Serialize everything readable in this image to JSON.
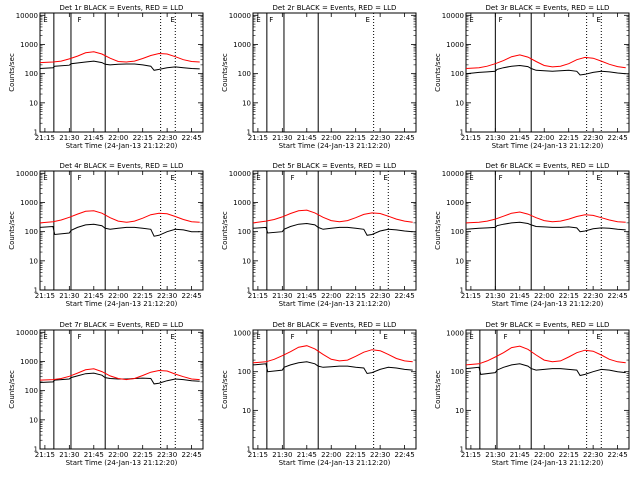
{
  "page": {
    "title": ""
  },
  "xticks": [
    "21:15",
    "21:30",
    "21:45",
    "22:00",
    "22:15",
    "22:30",
    "22:45"
  ],
  "xtick_values": [
    915,
    930,
    945,
    960,
    975,
    990,
    1005
  ],
  "xlim": [
    912,
    1012
  ],
  "xlabel": "Start Time (24-Jan-13 21:12:20)",
  "ylabel": "Counts/sec",
  "yticks": [
    1,
    10,
    100,
    1000,
    10000
  ],
  "ytick_labels": [
    "1",
    "10",
    "100",
    "1000",
    "10000"
  ],
  "ylim": [
    1,
    12000
  ],
  "series_colors": {
    "events": "#000000",
    "lld": "#ff0000"
  },
  "chart_data": [
    {
      "type": "line",
      "title": "Det 1r BLACK = Events, RED = LLD",
      "xlabel": "Start Time (24-Jan-13 21:12:20)",
      "ylabel": "Counts/sec",
      "ylim": [
        1,
        12000
      ],
      "log_y": true,
      "vlines_solid": [
        920.5,
        931,
        952
      ],
      "vlines_dotted": [
        986,
        995
      ],
      "markers": [
        {
          "x": 914,
          "label": "E"
        },
        {
          "x": 935,
          "label": "F"
        },
        {
          "x": 992,
          "label": "E"
        }
      ],
      "series": [
        {
          "name": "BLACK = Events",
          "x": [
            912,
            920,
            921,
            930,
            931,
            940,
            945,
            950,
            952,
            955,
            960,
            965,
            970,
            975,
            980,
            982,
            985,
            990,
            995,
            1000,
            1005,
            1010
          ],
          "values": [
            150,
            160,
            180,
            195,
            220,
            250,
            270,
            240,
            210,
            200,
            210,
            215,
            215,
            200,
            180,
            130,
            140,
            160,
            170,
            160,
            150,
            145
          ]
        },
        {
          "name": "RED = LLD",
          "x": [
            912,
            920,
            925,
            930,
            935,
            940,
            945,
            950,
            955,
            960,
            965,
            970,
            975,
            980,
            985,
            990,
            995,
            1000,
            1005,
            1010
          ],
          "values": [
            240,
            250,
            270,
            320,
            400,
            520,
            560,
            470,
            340,
            260,
            250,
            270,
            330,
            420,
            490,
            470,
            380,
            300,
            260,
            250
          ]
        }
      ]
    },
    {
      "type": "line",
      "title": "Det 2r BLACK = Events, RED = LLD",
      "xlabel": "Start Time (24-Jan-13 21:12:20)",
      "ylabel": "Counts/sec",
      "ylim": [
        1,
        12000
      ],
      "log_y": true,
      "vlines_solid": [
        920.5,
        931,
        952
      ],
      "vlines_dotted": [
        986
      ],
      "markers": [
        {
          "x": 914,
          "label": "E"
        },
        {
          "x": 922,
          "label": "F"
        },
        {
          "x": 981,
          "label": "E"
        }
      ],
      "series": []
    },
    {
      "type": "line",
      "title": "Det 3r BLACK = Events, RED = LLD",
      "xlabel": "Start Time (24-Jan-13 21:12:20)",
      "ylabel": "Counts/sec",
      "ylim": [
        1,
        12000
      ],
      "log_y": true,
      "vlines_solid": [
        930,
        952
      ],
      "vlines_dotted": [
        986,
        995
      ],
      "markers": [
        {
          "x": 914,
          "label": "E"
        },
        {
          "x": 932,
          "label": "F"
        },
        {
          "x": 992,
          "label": "E"
        }
      ],
      "series": [
        {
          "name": "BLACK = Events",
          "x": [
            912,
            920,
            925,
            930,
            931,
            935,
            940,
            945,
            950,
            952,
            955,
            960,
            965,
            970,
            975,
            980,
            982,
            985,
            990,
            995,
            1000,
            1005,
            1010
          ],
          "values": [
            100,
            110,
            115,
            120,
            140,
            160,
            180,
            190,
            175,
            150,
            130,
            125,
            120,
            125,
            130,
            120,
            90,
            95,
            110,
            120,
            115,
            105,
            100
          ]
        },
        {
          "name": "RED = LLD",
          "x": [
            912,
            920,
            925,
            930,
            935,
            940,
            945,
            950,
            955,
            960,
            965,
            970,
            975,
            980,
            985,
            990,
            995,
            1000,
            1005,
            1010
          ],
          "values": [
            150,
            160,
            180,
            220,
            280,
            380,
            440,
            370,
            260,
            190,
            170,
            180,
            220,
            300,
            360,
            340,
            270,
            210,
            175,
            160
          ]
        }
      ]
    },
    {
      "type": "line",
      "title": "Det 4r BLACK = Events, RED = LLD",
      "xlabel": "Start Time (24-Jan-13 21:12:20)",
      "ylabel": "Counts/sec",
      "ylim": [
        1,
        12000
      ],
      "log_y": true,
      "vlines_solid": [
        920.5,
        931,
        952
      ],
      "vlines_dotted": [
        986,
        995
      ],
      "markers": [
        {
          "x": 914,
          "label": "E"
        },
        {
          "x": 935,
          "label": "F"
        },
        {
          "x": 992,
          "label": "E"
        }
      ],
      "series": [
        {
          "name": "BLACK = Events",
          "x": [
            912,
            920,
            921,
            930,
            931,
            935,
            940,
            945,
            950,
            952,
            955,
            960,
            965,
            970,
            975,
            980,
            982,
            985,
            990,
            995,
            1000,
            1005,
            1010
          ],
          "values": [
            140,
            150,
            80,
            90,
            110,
            140,
            170,
            180,
            160,
            130,
            120,
            130,
            140,
            140,
            130,
            120,
            70,
            75,
            100,
            120,
            115,
            100,
            100
          ]
        },
        {
          "name": "RED = LLD",
          "x": [
            912,
            920,
            925,
            930,
            935,
            940,
            945,
            950,
            955,
            960,
            965,
            970,
            975,
            980,
            985,
            990,
            995,
            1000,
            1005,
            1010
          ],
          "values": [
            200,
            220,
            250,
            310,
            400,
            500,
            520,
            430,
            300,
            230,
            210,
            230,
            290,
            380,
            430,
            410,
            330,
            260,
            220,
            210
          ]
        }
      ]
    },
    {
      "type": "line",
      "title": "Det 5r BLACK = Events, RED = LLD",
      "xlabel": "Start Time (24-Jan-13 21:12:20)",
      "ylabel": "Counts/sec",
      "ylim": [
        1,
        12000
      ],
      "log_y": true,
      "vlines_solid": [
        920.5,
        931,
        952
      ],
      "vlines_dotted": [
        986,
        995
      ],
      "markers": [
        {
          "x": 914,
          "label": "E"
        },
        {
          "x": 935,
          "label": "F"
        },
        {
          "x": 992,
          "label": "E"
        }
      ],
      "series": [
        {
          "name": "BLACK = Events",
          "x": [
            912,
            920,
            921,
            930,
            931,
            935,
            940,
            945,
            950,
            952,
            955,
            960,
            965,
            970,
            975,
            980,
            982,
            985,
            990,
            995,
            1000,
            1005,
            1010
          ],
          "values": [
            130,
            140,
            90,
            100,
            120,
            150,
            180,
            190,
            170,
            140,
            120,
            130,
            140,
            140,
            130,
            120,
            75,
            80,
            105,
            120,
            115,
            105,
            100
          ]
        },
        {
          "name": "RED = LLD",
          "x": [
            912,
            920,
            925,
            930,
            935,
            940,
            945,
            950,
            955,
            960,
            965,
            970,
            975,
            980,
            985,
            990,
            995,
            1000,
            1005,
            1010
          ],
          "values": [
            200,
            230,
            260,
            320,
            420,
            520,
            550,
            440,
            310,
            240,
            220,
            240,
            300,
            390,
            440,
            420,
            340,
            270,
            230,
            210
          ]
        }
      ]
    },
    {
      "type": "line",
      "title": "Det 6r BLACK = Events, RED = LLD",
      "xlabel": "Start Time (24-Jan-13 21:12:20)",
      "ylabel": "Counts/sec",
      "ylim": [
        1,
        12000
      ],
      "log_y": true,
      "vlines_solid": [
        930,
        952
      ],
      "vlines_dotted": [
        986,
        995
      ],
      "markers": [
        {
          "x": 914,
          "label": "E"
        },
        {
          "x": 932,
          "label": "F"
        },
        {
          "x": 992,
          "label": "E"
        }
      ],
      "series": [
        {
          "name": "BLACK = Events",
          "x": [
            912,
            920,
            925,
            930,
            931,
            935,
            940,
            945,
            950,
            952,
            955,
            960,
            965,
            970,
            975,
            980,
            982,
            985,
            990,
            995,
            1000,
            1005,
            1010
          ],
          "values": [
            120,
            130,
            135,
            140,
            160,
            180,
            200,
            210,
            190,
            170,
            150,
            145,
            140,
            140,
            145,
            135,
            100,
            105,
            125,
            135,
            130,
            120,
            115
          ]
        },
        {
          "name": "RED = LLD",
          "x": [
            912,
            920,
            925,
            930,
            935,
            940,
            945,
            950,
            955,
            960,
            965,
            970,
            975,
            980,
            985,
            990,
            995,
            1000,
            1005,
            1010
          ],
          "values": [
            200,
            210,
            230,
            270,
            340,
            430,
            470,
            400,
            300,
            240,
            220,
            230,
            270,
            330,
            380,
            360,
            300,
            250,
            220,
            210
          ]
        }
      ]
    },
    {
      "type": "line",
      "title": "Det 7r BLACK = Events, RED = LLD",
      "xlabel": "Start Time (24-Jan-13 21:12:20)",
      "ylabel": "Counts/sec",
      "ylim": [
        1,
        12000
      ],
      "log_y": true,
      "vlines_solid": [
        920.5,
        931,
        952
      ],
      "vlines_dotted": [
        986,
        995
      ],
      "markers": [
        {
          "x": 914,
          "label": "E"
        },
        {
          "x": 935,
          "label": "F"
        },
        {
          "x": 992,
          "label": "E"
        }
      ],
      "series": [
        {
          "name": "BLACK = Events",
          "x": [
            912,
            920,
            921,
            930,
            931,
            935,
            940,
            945,
            950,
            952,
            955,
            960,
            965,
            970,
            975,
            980,
            982,
            985,
            990,
            995,
            1000,
            1005,
            1010
          ],
          "values": [
            190,
            200,
            230,
            250,
            280,
            320,
            380,
            400,
            340,
            280,
            260,
            250,
            250,
            260,
            270,
            260,
            170,
            180,
            220,
            250,
            240,
            220,
            210
          ]
        },
        {
          "name": "RED = LLD",
          "x": [
            912,
            920,
            925,
            930,
            935,
            940,
            945,
            950,
            955,
            960,
            965,
            970,
            975,
            980,
            985,
            990,
            995,
            1000,
            1005,
            1010
          ],
          "values": [
            230,
            240,
            260,
            310,
            400,
            520,
            560,
            450,
            320,
            260,
            240,
            260,
            330,
            430,
            490,
            470,
            370,
            300,
            250,
            240
          ]
        }
      ]
    },
    {
      "type": "line",
      "title": "Det 8r BLACK = Events, RED = LLD",
      "xlabel": "Start Time (24-Jan-13 21:12:20)",
      "ylabel": "Counts/sec",
      "ylim": [
        1,
        1200
      ],
      "log_y": true,
      "yticks": [
        1,
        10,
        100,
        1000
      ],
      "ytick_labels": [
        "1",
        "10",
        "100",
        "1000"
      ],
      "vlines_solid": [
        920.5,
        931,
        952
      ],
      "vlines_dotted": [
        986
      ],
      "markers": [
        {
          "x": 914,
          "label": "E"
        },
        {
          "x": 935,
          "label": "F"
        },
        {
          "x": 992,
          "label": "E"
        }
      ],
      "series": [
        {
          "name": "BLACK = Events",
          "x": [
            912,
            920,
            921,
            930,
            931,
            935,
            940,
            945,
            950,
            952,
            955,
            960,
            965,
            970,
            975,
            980,
            982,
            985,
            990,
            995,
            1000,
            1005,
            1010
          ],
          "values": [
            150,
            160,
            100,
            110,
            130,
            150,
            170,
            180,
            160,
            140,
            130,
            135,
            140,
            140,
            130,
            125,
            90,
            95,
            115,
            130,
            125,
            115,
            110
          ]
        },
        {
          "name": "RED = LLD",
          "x": [
            912,
            920,
            925,
            930,
            935,
            940,
            945,
            950,
            955,
            960,
            965,
            970,
            975,
            980,
            985,
            990,
            995,
            1000,
            1005,
            1010
          ],
          "values": [
            170,
            180,
            210,
            260,
            330,
            430,
            470,
            390,
            280,
            210,
            190,
            200,
            250,
            320,
            370,
            350,
            280,
            220,
            190,
            180
          ]
        }
      ]
    },
    {
      "type": "line",
      "title": "Det 9r BLACK = Events, RED = LLD",
      "xlabel": "Start Time (24-Jan-13 21:12:20)",
      "ylabel": "Counts/sec",
      "ylim": [
        1,
        1200
      ],
      "log_y": true,
      "yticks": [
        1,
        10,
        100,
        1000
      ],
      "ytick_labels": [
        "1",
        "10",
        "100",
        "1000"
      ],
      "vlines_solid": [
        920.5,
        931,
        952
      ],
      "vlines_dotted": [
        986,
        995
      ],
      "markers": [
        {
          "x": 914,
          "label": "E"
        },
        {
          "x": 935,
          "label": "F"
        },
        {
          "x": 992,
          "label": "E"
        }
      ],
      "series": [
        {
          "name": "BLACK = Events",
          "x": [
            912,
            920,
            921,
            930,
            931,
            935,
            940,
            945,
            950,
            952,
            955,
            960,
            965,
            970,
            975,
            980,
            982,
            985,
            990,
            995,
            1000,
            1005,
            1010
          ],
          "values": [
            120,
            130,
            85,
            95,
            110,
            130,
            150,
            160,
            140,
            120,
            110,
            115,
            120,
            120,
            115,
            110,
            80,
            85,
            100,
            115,
            110,
            100,
            95
          ]
        },
        {
          "name": "RED = LLD",
          "x": [
            912,
            920,
            925,
            930,
            935,
            940,
            945,
            950,
            955,
            960,
            965,
            970,
            975,
            980,
            985,
            990,
            995,
            1000,
            1005,
            1010
          ],
          "values": [
            150,
            160,
            190,
            240,
            310,
            420,
            460,
            380,
            270,
            200,
            180,
            190,
            240,
            310,
            360,
            340,
            270,
            210,
            180,
            170
          ]
        }
      ]
    }
  ]
}
